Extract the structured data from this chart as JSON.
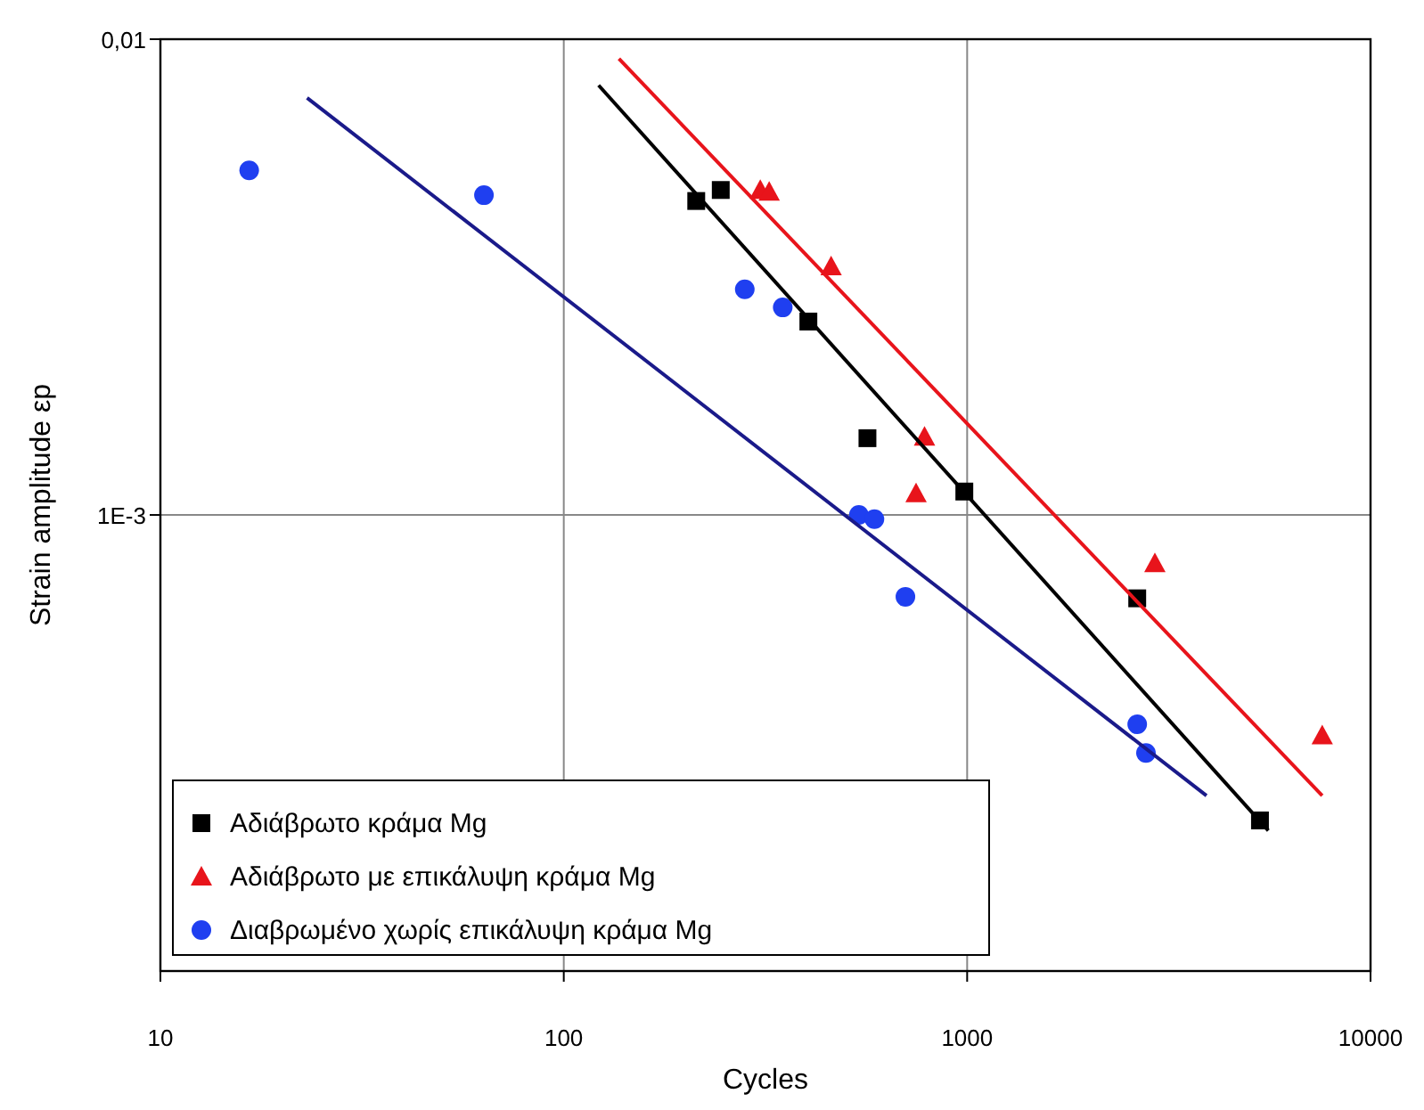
{
  "chart_data": {
    "type": "scatter",
    "xlabel": "Cycles",
    "ylabel": "Strain amplitude εp",
    "log": "xy",
    "grid": true,
    "legend": "bottom left",
    "xlim": [
      10,
      10000
    ],
    "ylim": [
      0.00011,
      0.01
    ],
    "xticks": [
      10,
      100,
      1000,
      10000
    ],
    "yticks": [
      {
        "value": 0.001,
        "label": "1E-3"
      },
      {
        "value": 0.01,
        "label": "0,01"
      }
    ],
    "series": [
      {
        "name": "Αδιάβρωτο κράμα Mg",
        "color": "#000000",
        "marker": "square",
        "x": [
          213,
          245,
          404,
          566,
          984,
          2640,
          5320
        ],
        "values": [
          0.00457,
          0.00482,
          0.00255,
          0.00145,
          0.00112,
          0.000668,
          0.000228
        ]
      },
      {
        "name": "Αδιάβρωτο με επικάλυψη κράμα Mg",
        "color": "#e8141b",
        "marker": "triangle",
        "x": [
          307,
          323,
          460,
          784,
          747,
          2920,
          7590
        ],
        "values": [
          0.00482,
          0.00478,
          0.00333,
          0.00146,
          0.00111,
          0.000792,
          0.000344
        ]
      },
      {
        "name": "Διαβρωμένο χωρίς επικάλυψη κράμα Mg",
        "color": "#1f3ff0",
        "marker": "circle",
        "x": [
          16.6,
          63.4,
          281,
          349,
          539,
          589,
          703,
          2640,
          2775
        ],
        "values": [
          0.0053,
          0.0047,
          0.00298,
          0.00273,
          0.001,
          0.00098,
          0.000673,
          0.000363,
          0.000316
        ]
      },
      {
        "type": "line",
        "color": "#000000",
        "marker": "none",
        "x": [
          122,
          5580
        ],
        "values": [
          0.008,
          0.000217
        ]
      },
      {
        "type": "line",
        "color": "#e8141b",
        "marker": "none",
        "x": [
          137,
          7590
        ],
        "values": [
          0.0091,
          0.000257
        ]
      },
      {
        "type": "line",
        "color": "#1a1a8a",
        "marker": "none",
        "x": [
          23.1,
          3920
        ],
        "values": [
          0.00753,
          0.000257
        ]
      }
    ]
  }
}
